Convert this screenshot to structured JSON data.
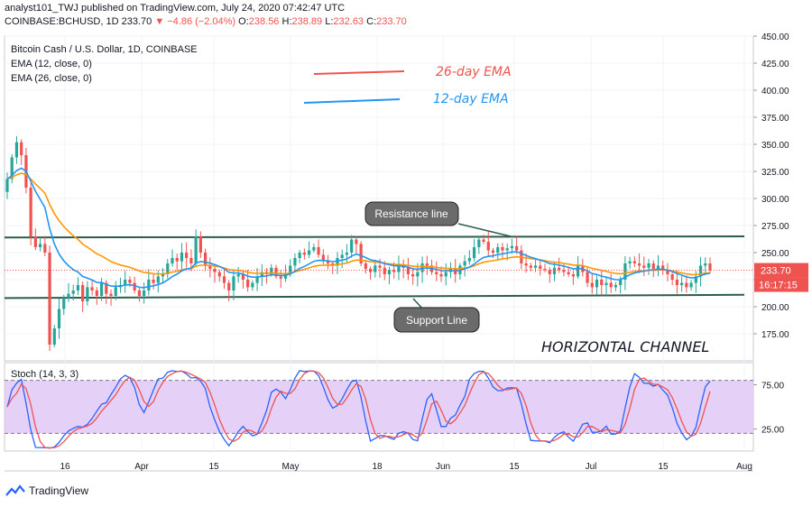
{
  "header": {
    "line1": "analyst101_TWJ published on TradingView.com, July 24, 2020 07:42:47 UTC",
    "symbol": "COINBASE:BCHUSD, 1D",
    "last": "233.70",
    "change": "▼ −4.86 (−2.04%)",
    "o_label": "O:",
    "o": "238.56",
    "h_label": "H:",
    "h": "238.89",
    "l_label": "L:",
    "l": "232.63",
    "c_label": "C:",
    "c": "233.70"
  },
  "legend": {
    "title": "Bitcoin Cash / U.S. Dollar, 1D, COINBASE",
    "ema12": "EMA (12, close, 0)",
    "ema26": "EMA (26, close, 0)",
    "ema26_note": "26-day EMA",
    "ema12_note": "12-day EMA"
  },
  "annotations": {
    "resistance": "Resistance line",
    "support": "Support Line",
    "channel": "HORIZONTAL  CHANNEL"
  },
  "price_tags": {
    "last": "233.70",
    "countdown": "16:17:15"
  },
  "stoch": {
    "label": "Stoch (14, 3, 3)",
    "upper": 80,
    "lower": 20
  },
  "footer": {
    "brand": "TradingView"
  },
  "colors": {
    "up": "#26a69a",
    "down": "#ef5350",
    "ema12": "#2196f3",
    "ema26": "#ff9800",
    "channel": "#2e5c4c",
    "stoch_k": "#2962ff",
    "stoch_d": "#ef5350",
    "stoch_fill": "#e1c8f7"
  },
  "chart_data": [
    {
      "type": "candlestick",
      "title": "Bitcoin Cash / U.S. Dollar, 1D, COINBASE",
      "price_axis": {
        "ylim": [
          150,
          450
        ],
        "ticks": [
          175,
          200,
          225,
          250,
          275,
          300,
          325,
          350,
          375,
          400,
          425,
          450
        ]
      },
      "x_ticks": [
        "16",
        "Apr",
        "15",
        "May",
        "18",
        "Jun",
        "15",
        "Jul",
        "15",
        "Aug"
      ],
      "closes": [
        318,
        338,
        352,
        340,
        310,
        265,
        255,
        258,
        250,
        165,
        180,
        198,
        208,
        212,
        215,
        220,
        205,
        218,
        215,
        210,
        222,
        212,
        210,
        218,
        220,
        225,
        222,
        215,
        210,
        215,
        225,
        222,
        228,
        230,
        240,
        245,
        242,
        250,
        245,
        240,
        265,
        250,
        238,
        235,
        232,
        228,
        222,
        215,
        228,
        230,
        225,
        218,
        222,
        228,
        232,
        230,
        236,
        228,
        226,
        230,
        238,
        245,
        250,
        248,
        252,
        255,
        248,
        242,
        240,
        238,
        245,
        248,
        250,
        262,
        258,
        240,
        235,
        232,
        238,
        236,
        230,
        234,
        232,
        238,
        236,
        230,
        228,
        232,
        240,
        238,
        232,
        230,
        228,
        232,
        235,
        230,
        238,
        242,
        245,
        255,
        262,
        260,
        252,
        250,
        255,
        252,
        254,
        256,
        252,
        240,
        238,
        236,
        238,
        235,
        234,
        230,
        236,
        234,
        232,
        230,
        228,
        238,
        232,
        222,
        218,
        225,
        220,
        222,
        218,
        220,
        225,
        240,
        242,
        240,
        238,
        236,
        240,
        235,
        238,
        234,
        230,
        225,
        220,
        222,
        218,
        222,
        228,
        238,
        240,
        233.7
      ],
      "ema12_legend": "12-day EMA",
      "ema26_legend": "26-day EMA",
      "levels": {
        "resistance": [
          264,
          265
        ],
        "support": [
          208,
          211
        ]
      },
      "last_price": 233.7
    },
    {
      "type": "line",
      "title": "Stoch (14, 3, 3)",
      "yticks": [
        25,
        75
      ],
      "bands": [
        20,
        80
      ]
    }
  ]
}
